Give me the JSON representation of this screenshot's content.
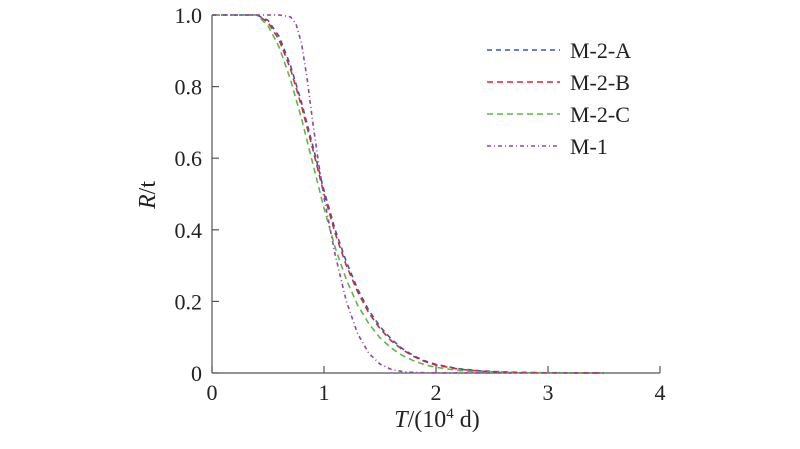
{
  "chart_data": {
    "type": "line",
    "xlabel_var": "T",
    "xlabel_unit_open": "/(10",
    "xlabel_unit_exp": "4",
    "xlabel_unit_close": " d)",
    "ylabel_var": "R",
    "ylabel_rest": "/t",
    "xlim": [
      0,
      4
    ],
    "ylim": [
      0,
      1.0
    ],
    "x_ticks": [
      {
        "value": 0,
        "label": "0"
      },
      {
        "value": 1,
        "label": "1"
      },
      {
        "value": 2,
        "label": "2"
      },
      {
        "value": 3,
        "label": "3"
      },
      {
        "value": 4,
        "label": "4"
      }
    ],
    "y_ticks": [
      {
        "value": 0,
        "label": "0"
      },
      {
        "value": 0.2,
        "label": "0.2"
      },
      {
        "value": 0.4,
        "label": "0.4"
      },
      {
        "value": 0.6,
        "label": "0.6"
      },
      {
        "value": 0.8,
        "label": "0.8"
      },
      {
        "value": 1.0,
        "label": "1.0"
      }
    ],
    "grid": false,
    "legend_position": "top-right",
    "series": [
      {
        "name": "M-2-A",
        "color": "#2f5fa8",
        "dash": "5,4",
        "points": [
          [
            0,
            1.0
          ],
          [
            0.4,
            1.0
          ],
          [
            0.5,
            0.985
          ],
          [
            0.6,
            0.94
          ],
          [
            0.7,
            0.86
          ],
          [
            0.8,
            0.755
          ],
          [
            0.9,
            0.635
          ],
          [
            1.0,
            0.51
          ],
          [
            1.1,
            0.4
          ],
          [
            1.2,
            0.31
          ],
          [
            1.3,
            0.235
          ],
          [
            1.4,
            0.175
          ],
          [
            1.5,
            0.13
          ],
          [
            1.6,
            0.095
          ],
          [
            1.7,
            0.068
          ],
          [
            1.8,
            0.048
          ],
          [
            1.9,
            0.034
          ],
          [
            2.0,
            0.024
          ],
          [
            2.2,
            0.012
          ],
          [
            2.4,
            0.006
          ],
          [
            2.6,
            0.003
          ],
          [
            2.8,
            0.0015
          ],
          [
            3.0,
            0.0007
          ],
          [
            3.2,
            0.0003
          ],
          [
            3.5,
            0.0
          ]
        ]
      },
      {
        "name": "M-2-B",
        "color": "#d6263b",
        "dash": "6,4",
        "points": [
          [
            0,
            1.0
          ],
          [
            0.4,
            1.0
          ],
          [
            0.5,
            0.98
          ],
          [
            0.6,
            0.93
          ],
          [
            0.7,
            0.85
          ],
          [
            0.8,
            0.745
          ],
          [
            0.9,
            0.625
          ],
          [
            1.0,
            0.5
          ],
          [
            1.1,
            0.39
          ],
          [
            1.2,
            0.3
          ],
          [
            1.3,
            0.227
          ],
          [
            1.4,
            0.168
          ],
          [
            1.5,
            0.124
          ],
          [
            1.6,
            0.09
          ],
          [
            1.7,
            0.065
          ],
          [
            1.8,
            0.046
          ],
          [
            1.9,
            0.032
          ],
          [
            2.0,
            0.022
          ],
          [
            2.2,
            0.011
          ],
          [
            2.4,
            0.005
          ],
          [
            2.6,
            0.0025
          ],
          [
            2.8,
            0.0012
          ],
          [
            3.0,
            0.0005
          ],
          [
            3.2,
            0.0002
          ],
          [
            3.5,
            0.0
          ]
        ]
      },
      {
        "name": "M-2-C",
        "color": "#5cb845",
        "dash": "6,4",
        "points": [
          [
            0,
            1.0
          ],
          [
            0.4,
            1.0
          ],
          [
            0.5,
            0.97
          ],
          [
            0.6,
            0.91
          ],
          [
            0.7,
            0.82
          ],
          [
            0.8,
            0.71
          ],
          [
            0.9,
            0.585
          ],
          [
            1.0,
            0.46
          ],
          [
            1.1,
            0.35
          ],
          [
            1.2,
            0.26
          ],
          [
            1.3,
            0.19
          ],
          [
            1.4,
            0.138
          ],
          [
            1.5,
            0.098
          ],
          [
            1.6,
            0.07
          ],
          [
            1.7,
            0.049
          ],
          [
            1.8,
            0.034
          ],
          [
            1.9,
            0.023
          ],
          [
            2.0,
            0.016
          ],
          [
            2.2,
            0.007
          ],
          [
            2.4,
            0.003
          ],
          [
            2.6,
            0.0014
          ],
          [
            2.8,
            0.0006
          ],
          [
            3.0,
            0.0002
          ],
          [
            3.5,
            0.0
          ]
        ]
      },
      {
        "name": "M-1",
        "color": "#8e44ad",
        "dash": "4,3,1,3",
        "points": [
          [
            0,
            1.0
          ],
          [
            0.6,
            1.0
          ],
          [
            0.7,
            0.995
          ],
          [
            0.75,
            0.975
          ],
          [
            0.8,
            0.92
          ],
          [
            0.85,
            0.82
          ],
          [
            0.9,
            0.7
          ],
          [
            0.95,
            0.59
          ],
          [
            1.0,
            0.49
          ],
          [
            1.1,
            0.33
          ],
          [
            1.2,
            0.2
          ],
          [
            1.3,
            0.11
          ],
          [
            1.4,
            0.055
          ],
          [
            1.5,
            0.025
          ],
          [
            1.6,
            0.01
          ],
          [
            1.7,
            0.004
          ],
          [
            1.8,
            0.0015
          ],
          [
            2.0,
            0.0002
          ],
          [
            2.5,
            0.0
          ],
          [
            3.5,
            0.0
          ]
        ]
      }
    ]
  }
}
